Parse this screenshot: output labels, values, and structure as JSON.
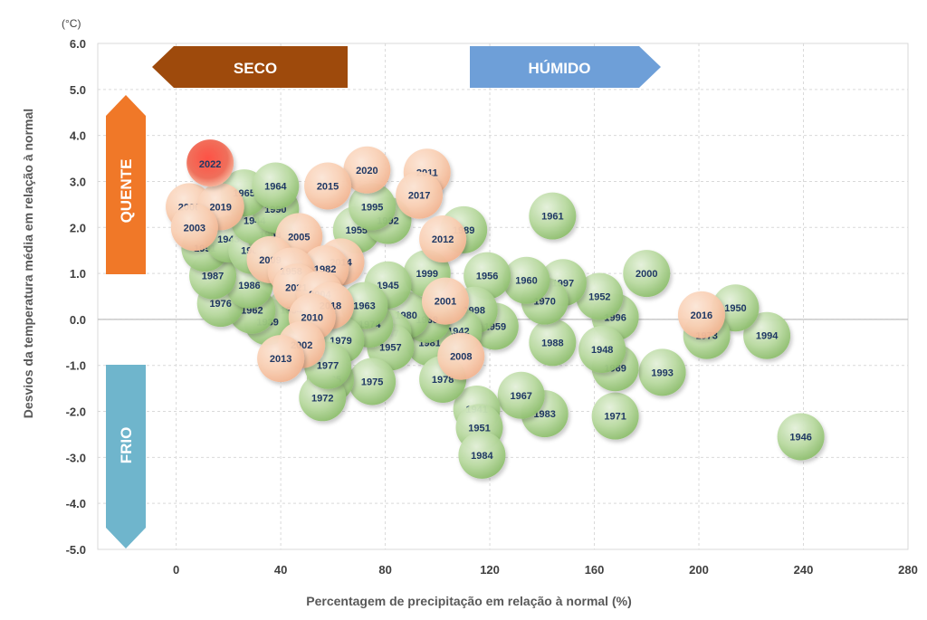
{
  "chart_data": {
    "type": "scatter",
    "xlabel": "Percentagem de precipitação em relação à normal (%)",
    "ylabel": "Desvios da temperatura média em relação à normal",
    "yunit": "(°C)",
    "xlim": [
      -30,
      280
    ],
    "ylim": [
      -5,
      6
    ],
    "xticks": [
      0,
      40,
      80,
      120,
      160,
      200,
      240,
      280
    ],
    "yticks": [
      6,
      5,
      4,
      3,
      2,
      1,
      0,
      -1,
      -2,
      -3,
      -4,
      -5
    ],
    "xtick_labels": [
      "0",
      "40",
      "80",
      "120",
      "160",
      "200",
      "240",
      "280"
    ],
    "ytick_labels": [
      "6.0",
      "5.0",
      "4.0",
      "3.0",
      "2.0",
      "1.0",
      "0.0",
      "-1.0",
      "-2.0",
      "-3.0",
      "-4.0",
      "-5.0"
    ],
    "grid": true,
    "regions": {
      "dry": "SECO",
      "wet": "HÚMIDO",
      "warm": "QUENTE",
      "cold": "FRIO"
    },
    "colors": {
      "highlight": "#e8332f",
      "warm_years": "#f8cdb0",
      "other_years": "#a9d08e",
      "seco_arrow": "#9e4a0c",
      "humido_arrow": "#6e9fd8",
      "quente_arrow": "#f07828",
      "frio_arrow": "#6fb5cc"
    },
    "points": [
      {
        "label": "1946",
        "x": 239,
        "y": -2.55,
        "group": "green"
      },
      {
        "label": "1994",
        "x": 226,
        "y": -0.35,
        "group": "green"
      },
      {
        "label": "1950",
        "x": 214,
        "y": 0.25,
        "group": "green"
      },
      {
        "label": "1973",
        "x": 203,
        "y": -0.35,
        "group": "green"
      },
      {
        "label": "1993",
        "x": 186,
        "y": -1.15,
        "group": "green"
      },
      {
        "label": "2000",
        "x": 180,
        "y": 1.0,
        "group": "green"
      },
      {
        "label": "1971",
        "x": 168,
        "y": -2.1,
        "group": "green"
      },
      {
        "label": "1996",
        "x": 168,
        "y": 0.05,
        "group": "green"
      },
      {
        "label": "1969",
        "x": 168,
        "y": -1.05,
        "group": "green"
      },
      {
        "label": "1948",
        "x": 163,
        "y": -0.65,
        "group": "green"
      },
      {
        "label": "1952",
        "x": 162,
        "y": 0.5,
        "group": "green"
      },
      {
        "label": "1997",
        "x": 148,
        "y": 0.8,
        "group": "green"
      },
      {
        "label": "1961",
        "x": 144,
        "y": 2.25,
        "group": "green"
      },
      {
        "label": "1988",
        "x": 144,
        "y": -0.5,
        "group": "green"
      },
      {
        "label": "1983",
        "x": 141,
        "y": -2.05,
        "group": "green"
      },
      {
        "label": "1970",
        "x": 141,
        "y": 0.4,
        "group": "green"
      },
      {
        "label": "1960",
        "x": 134,
        "y": 0.85,
        "group": "green"
      },
      {
        "label": "1967",
        "x": 132,
        "y": -1.65,
        "group": "green"
      },
      {
        "label": "1959",
        "x": 122,
        "y": -0.15,
        "group": "green"
      },
      {
        "label": "1956",
        "x": 119,
        "y": 0.95,
        "group": "green"
      },
      {
        "label": "1941",
        "x": 115,
        "y": -1.95,
        "group": "green"
      },
      {
        "label": "1951",
        "x": 116,
        "y": -2.35,
        "group": "green"
      },
      {
        "label": "1984",
        "x": 117,
        "y": -2.95,
        "group": "green"
      },
      {
        "label": "1989",
        "x": 110,
        "y": 1.95,
        "group": "green"
      },
      {
        "label": "1998",
        "x": 114,
        "y": 0.2,
        "group": "green"
      },
      {
        "label": "1942",
        "x": 108,
        "y": -0.25,
        "group": "green"
      },
      {
        "label": "1981",
        "x": 97,
        "y": -0.5,
        "group": "green"
      },
      {
        "label": "1978",
        "x": 102,
        "y": -1.3,
        "group": "green"
      },
      {
        "label": "1968",
        "x": 96,
        "y": 0.0,
        "group": "green"
      },
      {
        "label": "1980",
        "x": 88,
        "y": 0.1,
        "group": "green"
      },
      {
        "label": "1999",
        "x": 96,
        "y": 1.0,
        "group": "green"
      },
      {
        "label": "1945",
        "x": 81,
        "y": 0.75,
        "group": "green"
      },
      {
        "label": "1947",
        "x": 81,
        "y": -0.3,
        "group": "green"
      },
      {
        "label": "1957",
        "x": 82,
        "y": -0.6,
        "group": "green"
      },
      {
        "label": "1974",
        "x": 74,
        "y": -0.1,
        "group": "green"
      },
      {
        "label": "1963",
        "x": 72,
        "y": 0.3,
        "group": "green"
      },
      {
        "label": "1975",
        "x": 75,
        "y": -1.35,
        "group": "green"
      },
      {
        "label": "1955",
        "x": 69,
        "y": 1.95,
        "group": "green"
      },
      {
        "label": "1992",
        "x": 81,
        "y": 2.15,
        "group": "green"
      },
      {
        "label": "1995",
        "x": 75,
        "y": 2.45,
        "group": "green"
      },
      {
        "label": "1985",
        "x": 59,
        "y": -1.3,
        "group": "green"
      },
      {
        "label": "1972",
        "x": 56,
        "y": -1.7,
        "group": "green"
      },
      {
        "label": "1979",
        "x": 63,
        "y": -0.45,
        "group": "green"
      },
      {
        "label": "1977",
        "x": 58,
        "y": -1.0,
        "group": "green"
      },
      {
        "label": "1954",
        "x": 44,
        "y": 0.2,
        "group": "green"
      },
      {
        "label": "1939",
        "x": 35,
        "y": -0.05,
        "group": "green"
      },
      {
        "label": "1962",
        "x": 29,
        "y": 0.2,
        "group": "green"
      },
      {
        "label": "1976",
        "x": 17,
        "y": 0.35,
        "group": "green"
      },
      {
        "label": "1986",
        "x": 28,
        "y": 0.75,
        "group": "green"
      },
      {
        "label": "1987",
        "x": 14,
        "y": 0.95,
        "group": "green"
      },
      {
        "label": "1991",
        "x": 11,
        "y": 1.55,
        "group": "green"
      },
      {
        "label": "1943",
        "x": 20,
        "y": 1.75,
        "group": "green"
      },
      {
        "label": "1966",
        "x": 29,
        "y": 1.5,
        "group": "green"
      },
      {
        "label": "1953",
        "x": 36,
        "y": 1.85,
        "group": "green"
      },
      {
        "label": "1944",
        "x": 30,
        "y": 2.15,
        "group": "green"
      },
      {
        "label": "1990",
        "x": 38,
        "y": 2.4,
        "group": "green"
      },
      {
        "label": "1965",
        "x": 26,
        "y": 2.75,
        "group": "green"
      },
      {
        "label": "1964",
        "x": 38,
        "y": 2.9,
        "group": "green"
      },
      {
        "label": "2022",
        "x": 13,
        "y": 3.4,
        "group": "highlight"
      },
      {
        "label": "2020",
        "x": 73,
        "y": 3.25,
        "group": "warm"
      },
      {
        "label": "2011",
        "x": 96,
        "y": 3.2,
        "group": "warm"
      },
      {
        "label": "2017",
        "x": 93,
        "y": 2.7,
        "group": "warm"
      },
      {
        "label": "2015",
        "x": 58,
        "y": 2.9,
        "group": "warm"
      },
      {
        "label": "2012",
        "x": 102,
        "y": 1.75,
        "group": "warm"
      },
      {
        "label": "2005",
        "x": 47,
        "y": 1.8,
        "group": "warm"
      },
      {
        "label": "2014",
        "x": 63,
        "y": 1.25,
        "group": "warm"
      },
      {
        "label": "1982",
        "x": 57,
        "y": 1.1,
        "group": "warm"
      },
      {
        "label": "2009",
        "x": 36,
        "y": 1.3,
        "group": "warm"
      },
      {
        "label": "1958",
        "x": 44,
        "y": 1.05,
        "group": "warm"
      },
      {
        "label": "2021",
        "x": 46,
        "y": 0.7,
        "group": "warm"
      },
      {
        "label": "2004",
        "x": 55,
        "y": 0.55,
        "group": "warm"
      },
      {
        "label": "2018",
        "x": 59,
        "y": 0.3,
        "group": "warm"
      },
      {
        "label": "2010",
        "x": 52,
        "y": 0.05,
        "group": "warm"
      },
      {
        "label": "2002",
        "x": 48,
        "y": -0.55,
        "group": "warm"
      },
      {
        "label": "2013",
        "x": 40,
        "y": -0.85,
        "group": "warm"
      },
      {
        "label": "2001",
        "x": 103,
        "y": 0.4,
        "group": "warm"
      },
      {
        "label": "2008",
        "x": 109,
        "y": -0.8,
        "group": "warm"
      },
      {
        "label": "2016",
        "x": 201,
        "y": 0.1,
        "group": "warm"
      },
      {
        "label": "2006",
        "x": 5,
        "y": 2.45,
        "group": "warm"
      },
      {
        "label": "2019",
        "x": 17,
        "y": 2.45,
        "group": "warm"
      },
      {
        "label": "2003",
        "x": 7,
        "y": 2.0,
        "group": "warm"
      }
    ]
  }
}
